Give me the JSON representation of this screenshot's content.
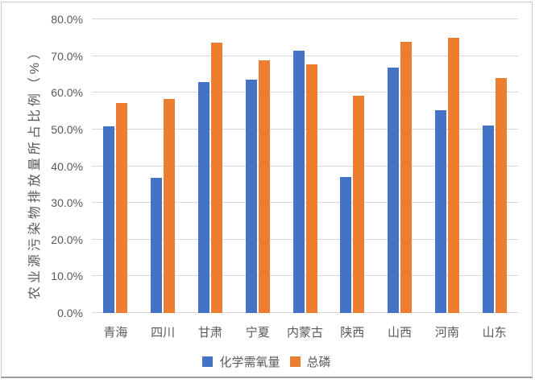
{
  "chart_data": {
    "type": "bar",
    "categories": [
      "青海",
      "四川",
      "甘肃",
      "宁夏",
      "内蒙古",
      "陕西",
      "山西",
      "河南",
      "山东"
    ],
    "series": [
      {
        "name": "化学需氧量",
        "color": "#4472C4",
        "values": [
          50.8,
          36.9,
          63.0,
          63.5,
          71.4,
          37.0,
          66.8,
          55.2,
          51.1
        ]
      },
      {
        "name": "总磷",
        "color": "#ED7D31",
        "values": [
          57.2,
          58.3,
          73.6,
          68.9,
          67.7,
          59.1,
          73.8,
          75.0,
          64.1
        ]
      }
    ],
    "ylabel": "农业源污染物排放量所占比例（%）",
    "ylim": [
      0,
      80
    ],
    "ytick_step": 10,
    "ytick_labels": [
      "0.0%",
      "10.0%",
      "20.0%",
      "30.0%",
      "40.0%",
      "50.0%",
      "60.0%",
      "70.0%",
      "80.0%"
    ],
    "grid": true,
    "legend_position": "bottom",
    "colors": {
      "gridline": "#D9D9D9",
      "axis_text": "#595959",
      "background": "#FFFFFF",
      "frame_border": "#C9C9C9",
      "frame_bottom_border": "#9E9E9E"
    }
  }
}
